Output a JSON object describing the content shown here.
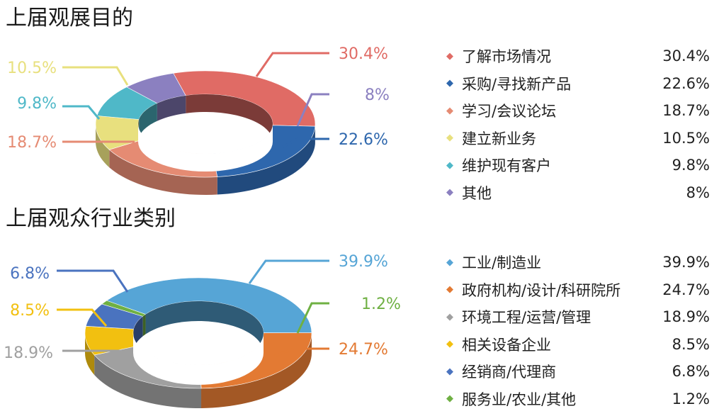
{
  "chart_data": [
    {
      "type": "pie",
      "title": "上届观展目的",
      "categories": [
        "了解市场情况",
        "采购/寻找新产品",
        "学习/会议论坛",
        "建立新业务",
        "维护现有客户",
        "其他"
      ],
      "values": [
        30.4,
        22.6,
        18.7,
        10.5,
        9.8,
        8
      ],
      "colors": [
        "#e06b65",
        "#2e67ad",
        "#e58b73",
        "#e8e07e",
        "#4fb8c8",
        "#8b80c0"
      ],
      "data_labels": [
        "30.4%",
        "22.6%",
        "18.7%",
        "10.5%",
        "9.8%",
        "8%"
      ],
      "legend_values": [
        "30.4%",
        "22.6%",
        "18.7%",
        "10.5%",
        "9.8%",
        "8%"
      ],
      "legend_position": "right"
    },
    {
      "type": "pie",
      "title": "上届观众行业类别",
      "categories": [
        "工业/制造业",
        "政府机构/设计/科研院所",
        "环境工程/运营/管理",
        "相关设备企业",
        "经销商/代理商",
        "服务业/农业/其他"
      ],
      "values": [
        39.9,
        24.7,
        18.9,
        8.5,
        6.8,
        1.2
      ],
      "colors": [
        "#56a5d6",
        "#e37a33",
        "#a0a0a0",
        "#f2c010",
        "#4a73bf",
        "#6fb043"
      ],
      "data_labels": [
        "39.9%",
        "24.7%",
        "18.9%",
        "8.5%",
        "6.8%",
        "1.2%"
      ],
      "legend_values": [
        "39.9%",
        "24.7%",
        "18.9%",
        "8.5%",
        "6.8%",
        "1.2%"
      ],
      "legend_position": "right"
    }
  ]
}
